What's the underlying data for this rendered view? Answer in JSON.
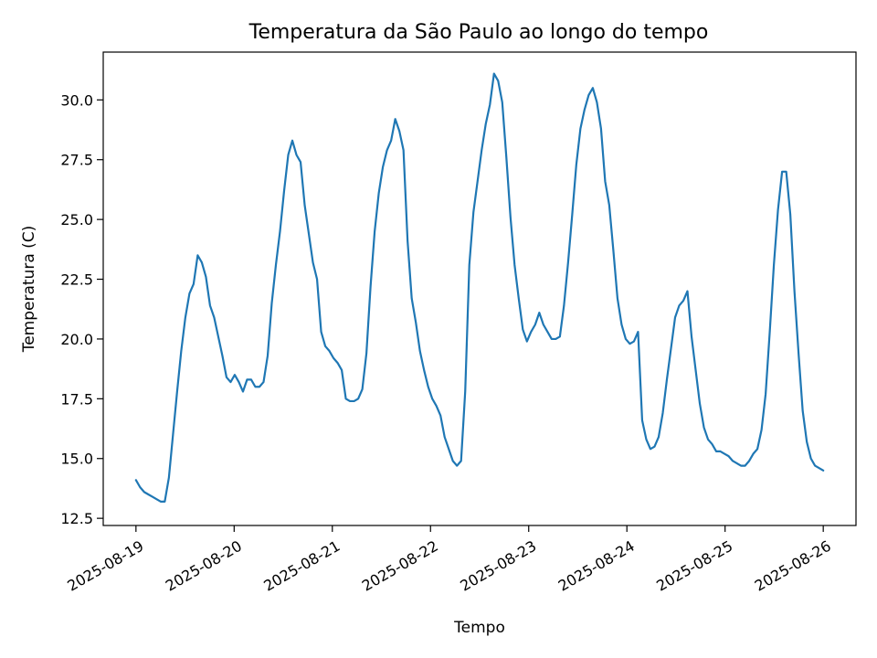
{
  "chart_data": {
    "type": "line",
    "title": "Temperatura da São Paulo ao longo do tempo",
    "xlabel": "Tempo",
    "ylabel": "Temperatura (C)",
    "x_start": "2025-08-19",
    "x_end": "2025-08-26",
    "xlim": [
      "2025-08-18 16:00",
      "2025-08-26 08:00"
    ],
    "ylim": [
      12.2,
      32.0
    ],
    "x_ticks": [
      "2025-08-19",
      "2025-08-20",
      "2025-08-21",
      "2025-08-22",
      "2025-08-23",
      "2025-08-24",
      "2025-08-25",
      "2025-08-26"
    ],
    "y_ticks": [
      "12.5",
      "15.0",
      "17.5",
      "20.0",
      "22.5",
      "25.0",
      "27.5",
      "30.0"
    ],
    "grid": false,
    "legend": "none",
    "series": [
      {
        "color": "#1f77b4",
        "values": [
          14.1,
          13.8,
          13.6,
          13.5,
          13.4,
          13.3,
          13.2,
          13.2,
          14.2,
          16.0,
          17.8,
          19.5,
          20.9,
          21.9,
          22.3,
          23.5,
          23.2,
          22.6,
          21.4,
          20.9,
          20.1,
          19.3,
          18.4,
          18.2,
          18.5,
          18.2,
          17.8,
          18.3,
          18.3,
          18.0,
          18.0,
          18.2,
          19.3,
          21.5,
          23.1,
          24.5,
          26.2,
          27.7,
          28.3,
          27.7,
          27.4,
          25.6,
          24.4,
          23.2,
          22.5,
          20.3,
          19.7,
          19.5,
          19.2,
          19.0,
          18.7,
          17.5,
          17.4,
          17.4,
          17.5,
          17.9,
          19.4,
          22.2,
          24.5,
          26.1,
          27.2,
          27.9,
          28.3,
          29.2,
          28.7,
          27.9,
          24.1,
          21.7,
          20.7,
          19.5,
          18.7,
          18.0,
          17.5,
          17.2,
          16.8,
          15.9,
          15.4,
          14.9,
          14.7,
          14.9,
          17.8,
          23.1,
          25.3,
          26.6,
          27.9,
          29.0,
          29.8,
          31.1,
          30.8,
          29.9,
          27.6,
          25.1,
          23.1,
          21.7,
          20.4,
          19.9,
          20.3,
          20.6,
          21.1,
          20.6,
          20.3,
          20.0,
          20.0,
          20.1,
          21.4,
          23.2,
          25.2,
          27.3,
          28.8,
          29.6,
          30.2,
          30.5,
          29.9,
          28.8,
          26.6,
          25.6,
          23.7,
          21.7,
          20.6,
          20.0,
          19.8,
          19.9,
          20.3,
          16.6,
          15.8,
          15.4,
          15.5,
          15.9,
          16.9,
          18.3,
          19.6,
          20.9,
          21.4,
          21.6,
          22.0,
          20.1,
          18.7,
          17.3,
          16.3,
          15.8,
          15.6,
          15.3,
          15.3,
          15.2,
          15.1,
          14.9,
          14.8,
          14.7,
          14.7,
          14.9,
          15.2,
          15.4,
          16.2,
          17.7,
          20.3,
          23.1,
          25.4,
          27.0,
          27.0,
          25.2,
          22.0,
          19.4,
          17.0,
          15.7,
          15.0,
          14.7,
          14.6,
          14.5
        ]
      }
    ]
  }
}
